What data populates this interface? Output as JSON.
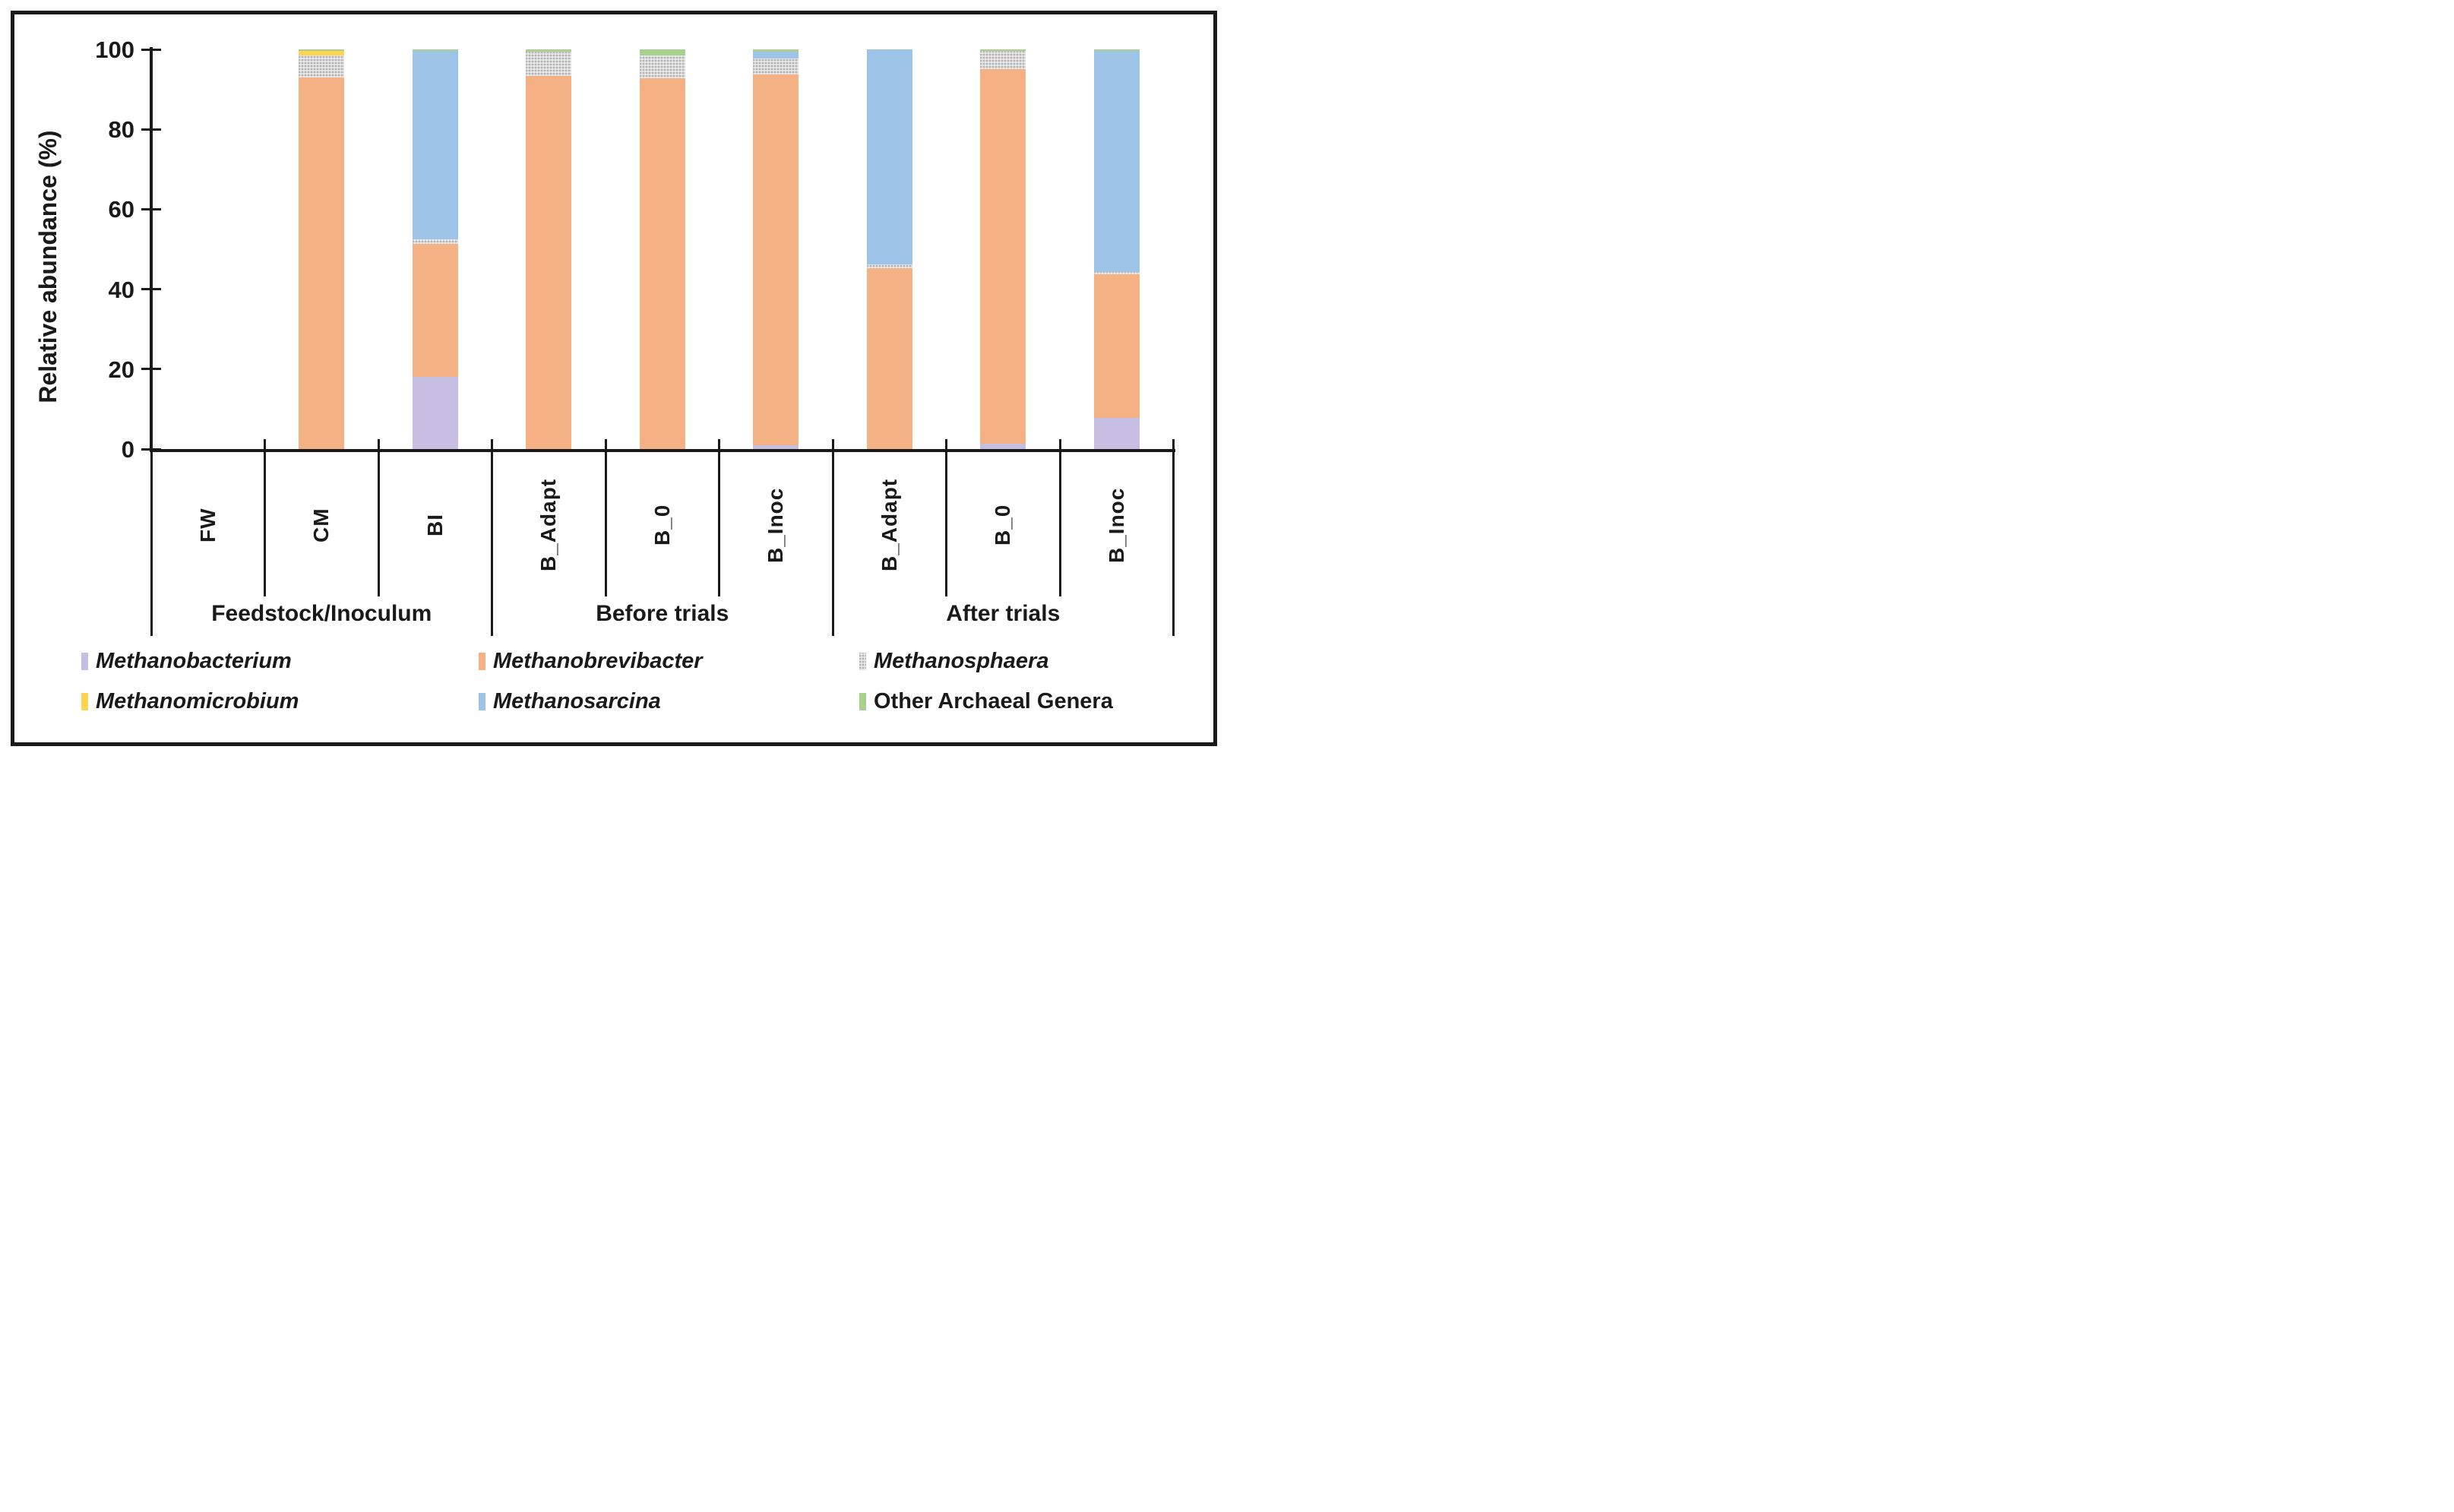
{
  "figure": {
    "y_axis_title": "Relative abundance (%)"
  },
  "chart_data": {
    "type": "bar",
    "stacked": true,
    "title": "",
    "ylabel": "Relative abundance (%)",
    "ylim": [
      0,
      100
    ],
    "yticks": [
      100,
      80,
      60,
      40,
      20,
      0
    ],
    "grid": false,
    "legend_position": "bottom",
    "categories": [
      "FW",
      "CM",
      "BI",
      "B_Adapt",
      "B_0",
      "B_Inoc",
      "B_Adapt",
      "B_0",
      "B_Inoc"
    ],
    "category_groups": [
      {
        "label": "Feedstock/Inoculum",
        "span": [
          0,
          2
        ]
      },
      {
        "label": "Before trials",
        "span": [
          3,
          5
        ]
      },
      {
        "label": "After trials",
        "span": [
          6,
          8
        ]
      }
    ],
    "series": [
      {
        "name": "Methanobacterium",
        "color": "#c6bfe2",
        "italic": true,
        "pattern": "none",
        "values": [
          0,
          0,
          18.0,
          0,
          0,
          0.9,
          0,
          1.4,
          7.7
        ]
      },
      {
        "name": "Methanobrevibacter",
        "color": "#f4b183",
        "italic": true,
        "pattern": "none",
        "values": [
          0,
          93.0,
          33.3,
          93.4,
          92.7,
          92.8,
          45.3,
          93.6,
          36.1
        ]
      },
      {
        "name": "Methanosphaera",
        "color": "#d6d4d4",
        "italic": true,
        "pattern": "dotted",
        "values": [
          0,
          5.4,
          1.2,
          6.0,
          5.7,
          4.0,
          0.9,
          4.6,
          0.5
        ]
      },
      {
        "name": "Methanomicrobium",
        "color": "#fdd34f",
        "italic": true,
        "pattern": "none",
        "values": [
          0,
          1.3,
          0,
          0,
          0,
          0,
          0,
          0,
          0
        ]
      },
      {
        "name": "Methanosarcina",
        "color": "#9dc3e6",
        "italic": true,
        "pattern": "none",
        "values": [
          0,
          0,
          47.1,
          0,
          0,
          1.8,
          53.8,
          0,
          55.4
        ]
      },
      {
        "name": "Other Archaeal Genera",
        "color": "#a9d18e",
        "italic": false,
        "pattern": "none",
        "values": [
          0,
          0.3,
          0.4,
          0.6,
          1.6,
          0.5,
          0,
          0.4,
          0.3
        ]
      }
    ]
  }
}
